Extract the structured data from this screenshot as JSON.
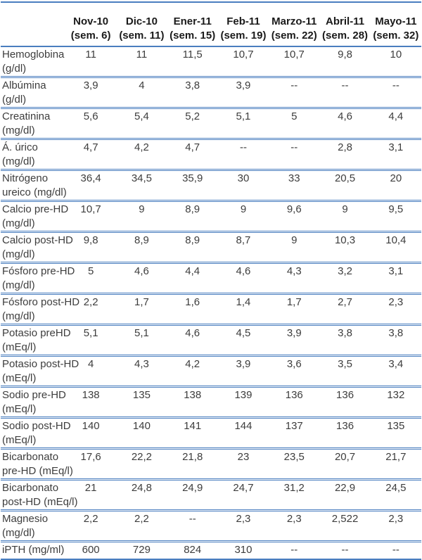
{
  "table": {
    "description": "Tabla de resultados de laboratorio por mes y semana",
    "columns": [
      {
        "month": "Nov-10",
        "week": "(sem. 6)"
      },
      {
        "month": "Dic-10",
        "week": "(sem. 11)"
      },
      {
        "month": "Ener-11",
        "week": "(sem. 15)"
      },
      {
        "month": "Feb-11",
        "week": "(sem. 19)"
      },
      {
        "month": "Marzo-11",
        "week": "(sem. 22)"
      },
      {
        "month": "Abril-11",
        "week": "(sem. 28)"
      },
      {
        "month": "Mayo-11",
        "week": "(sem. 32)"
      }
    ],
    "rows": [
      {
        "name": "Hemoglobina",
        "unit": "(g/dl)",
        "values": [
          "11",
          "11",
          "11,5",
          "10,7",
          "10,7",
          "9,8",
          "10"
        ]
      },
      {
        "name": "Albúmina",
        "unit": "(g/dl)",
        "values": [
          "3,9",
          "4",
          "3,8",
          "3,9",
          "--",
          "--",
          "--"
        ]
      },
      {
        "name": "Creatinina",
        "unit": "(mg/dl)",
        "values": [
          "5,6",
          "5,4",
          "5,2",
          "5,1",
          "5",
          "4,6",
          "4,4"
        ]
      },
      {
        "name": "Á. úrico",
        "unit": "(mg/dl)",
        "values": [
          "4,7",
          "4,2",
          "4,7",
          "--",
          "--",
          "2,8",
          "3,1"
        ]
      },
      {
        "name": "Nitrógeno",
        "unit": "ureico (mg/dl)",
        "values": [
          "36,4",
          "34,5",
          "35,9",
          "30",
          "33",
          "20,5",
          "20"
        ]
      },
      {
        "name": "Calcio pre-HD",
        "unit": "(mg/dl)",
        "values": [
          "10,7",
          "9",
          "8,9",
          "9",
          "9,6",
          "9",
          "9,5"
        ]
      },
      {
        "name": "Calcio post-HD",
        "unit": "(mg/dl)",
        "values": [
          "9,8",
          "8,9",
          "8,9",
          "8,7",
          "9",
          "10,3",
          "10,4"
        ]
      },
      {
        "name": "Fósforo pre-HD",
        "unit": "(mg/dl)",
        "values": [
          "5",
          "4,6",
          "4,4",
          "4,6",
          "4,3",
          "3,2",
          "3,1"
        ]
      },
      {
        "name": "Fósforo post-HD",
        "unit": "(mg/dl)",
        "values": [
          "2,2",
          "1,7",
          "1,6",
          "1,4",
          "1,7",
          "2,7",
          "2,3"
        ]
      },
      {
        "name": "Potasio preHD",
        "unit": "(mEq/l)",
        "values": [
          "5,1",
          "5,1",
          "4,6",
          "4,5",
          "3,9",
          "3,8",
          "3,8"
        ]
      },
      {
        "name": "Potasio post-HD",
        "unit": "(mEq/l)",
        "values": [
          "4",
          "4,3",
          "4,2",
          "3,9",
          "3,6",
          "3,5",
          "3,4"
        ]
      },
      {
        "name": "Sodio pre-HD",
        "unit": "(mEq/l)",
        "values": [
          "138",
          "135",
          "138",
          "139",
          "136",
          "136",
          "132"
        ]
      },
      {
        "name": "Sodio post-HD",
        "unit": "(mEq/l)",
        "values": [
          "140",
          "140",
          "141",
          "144",
          "137",
          "136",
          "135"
        ]
      },
      {
        "name": "Bicarbonato",
        "unit": "pre-HD (mEq/l)",
        "values": [
          "17,6",
          "22,2",
          "21,8",
          "23",
          "23,5",
          "20,7",
          "21,7"
        ]
      },
      {
        "name": "Bicarbonato",
        "unit": "post-HD (mEq/l)",
        "values": [
          "21",
          "24,8",
          "24,9",
          "24,7",
          "31,2",
          "22,9",
          "24,5"
        ]
      },
      {
        "name": "Magnesio",
        "unit": "(mg/dl)",
        "values": [
          "2,2",
          "2,2",
          "--",
          "2,3",
          "2,3",
          "2,522",
          "2,3"
        ]
      },
      {
        "name": "iPTH (mg/ml)",
        "unit": "",
        "values": [
          "600",
          "729",
          "824",
          "310",
          "--",
          "--",
          "--"
        ]
      }
    ],
    "colors": {
      "line": "#4a7ebf",
      "header_text": "#1a1a1a",
      "body_text": "#3d3d3d"
    }
  }
}
